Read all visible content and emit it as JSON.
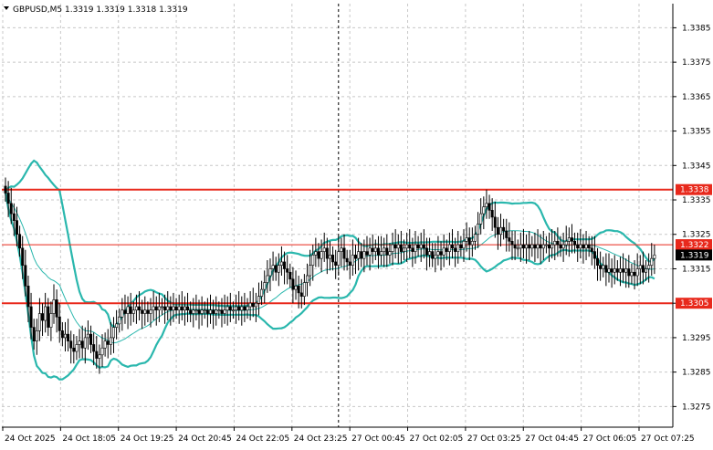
{
  "header": {
    "symbol_info": "GBPUSD,M5  1.3319 1.3319 1.3318 1.3319"
  },
  "colors": {
    "background": "#ffffff",
    "grid": "#c8c8c8",
    "candle": "#000000",
    "bollinger": "#2ab7ad",
    "level_line": "#e8291c",
    "level_tag_bg": "#e8291c",
    "last_price_bg": "#000000"
  },
  "chart_data": {
    "type": "candlestick",
    "symbol": "GBPUSD",
    "timeframe": "M5",
    "ohlc_header": {
      "open": 1.3319,
      "high": 1.3319,
      "low": 1.3318,
      "close": 1.3319
    },
    "y_range": [
      1.3269,
      1.3392
    ],
    "y_ticks": [
      "1.3385",
      "1.3375",
      "1.3365",
      "1.3355",
      "1.3345",
      "1.3335",
      "1.3325",
      "1.3315",
      "1.3305",
      "1.3295",
      "1.3285",
      "1.3275"
    ],
    "x_ticks": [
      "24 Oct 2025",
      "24 Oct 18:05",
      "24 Oct 19:25",
      "24 Oct 20:45",
      "24 Oct 22:05",
      "24 Oct 23:25",
      "27 Oct 00:45",
      "27 Oct 02:05",
      "27 Oct 03:25",
      "27 Oct 04:45",
      "27 Oct 06:05",
      "27 Oct 07:25"
    ],
    "grid": true,
    "price_levels": [
      {
        "label": "1.3338",
        "value": 1.3338
      },
      {
        "label": "1.3322",
        "value": 1.3322
      },
      {
        "label": "1.3305",
        "value": 1.3305
      }
    ],
    "last_price": {
      "label": "1.3319",
      "value": 1.3319
    },
    "session_separator_index": 117,
    "closes": [
      1.3337,
      1.3334,
      1.3331,
      1.3329,
      1.3325,
      1.3321,
      1.3316,
      1.331,
      1.3304,
      1.3298,
      1.3294,
      1.3297,
      1.3302,
      1.33,
      1.3304,
      1.3298,
      1.3302,
      1.3306,
      1.3301,
      1.3297,
      1.3295,
      1.3296,
      1.3294,
      1.3292,
      1.3291,
      1.3293,
      1.3294,
      1.3292,
      1.3295,
      1.3296,
      1.3293,
      1.3291,
      1.3289,
      1.329,
      1.3292,
      1.3294,
      1.3293,
      1.3295,
      1.3298,
      1.3299,
      1.3301,
      1.3303,
      1.3302,
      1.3304,
      1.3302,
      1.3303,
      1.3304,
      1.3303,
      1.3302,
      1.3303,
      1.3302,
      1.3303,
      1.3304,
      1.3303,
      1.3304,
      1.3304,
      1.3303,
      1.3304,
      1.3303,
      1.3304,
      1.3303,
      1.3304,
      1.3303,
      1.3304,
      1.3303,
      1.3302,
      1.3303,
      1.3303,
      1.3302,
      1.3303,
      1.3303,
      1.3302,
      1.3303,
      1.3302,
      1.3303,
      1.3303,
      1.3302,
      1.3303,
      1.3304,
      1.3303,
      1.3303,
      1.3304,
      1.3303,
      1.3304,
      1.3303,
      1.3304,
      1.3305,
      1.3304,
      1.3305,
      1.3307,
      1.3309,
      1.3311,
      1.3313,
      1.3315,
      1.3316,
      1.3314,
      1.3316,
      1.3317,
      1.3315,
      1.3314,
      1.3312,
      1.3309,
      1.331,
      1.3308,
      1.3307,
      1.3311,
      1.3313,
      1.3316,
      1.3319,
      1.332,
      1.3318,
      1.332,
      1.3321,
      1.3318,
      1.3319,
      1.3317,
      1.3316,
      1.332,
      1.3321,
      1.3318,
      1.3317,
      1.3316,
      1.3319,
      1.3318,
      1.332,
      1.3318,
      1.332,
      1.3319,
      1.3321,
      1.332,
      1.3321,
      1.3319,
      1.332,
      1.3321,
      1.3319,
      1.332,
      1.3322,
      1.3321,
      1.3322,
      1.332,
      1.3321,
      1.3322,
      1.3321,
      1.332,
      1.3322,
      1.3321,
      1.3322,
      1.3321,
      1.3319,
      1.332,
      1.3318,
      1.3319,
      1.332,
      1.3319,
      1.3321,
      1.332,
      1.3322,
      1.3321,
      1.332,
      1.3322,
      1.3321,
      1.3323,
      1.3324,
      1.3322,
      1.3323,
      1.3325,
      1.3328,
      1.3331,
      1.3333,
      1.3334,
      1.3332,
      1.333,
      1.3327,
      1.3325,
      1.3327,
      1.3326,
      1.3324,
      1.3323,
      1.3322,
      1.3321,
      1.3321,
      1.3322,
      1.3321,
      1.3322,
      1.3321,
      1.3322,
      1.3321,
      1.3322,
      1.3321,
      1.3322,
      1.3322,
      1.3321,
      1.3322,
      1.3323,
      1.3322,
      1.3321,
      1.3322,
      1.3323,
      1.3324,
      1.3323,
      1.3322,
      1.3321,
      1.3322,
      1.3321,
      1.3322,
      1.3321,
      1.332,
      1.3318,
      1.3316,
      1.3315,
      1.3316,
      1.3314,
      1.3315,
      1.3314,
      1.3315,
      1.3314,
      1.3315,
      1.3314,
      1.3315,
      1.3313,
      1.3314,
      1.3313,
      1.3315,
      1.3316,
      1.3314,
      1.3315,
      1.3316,
      1.3318,
      1.3319
    ]
  }
}
